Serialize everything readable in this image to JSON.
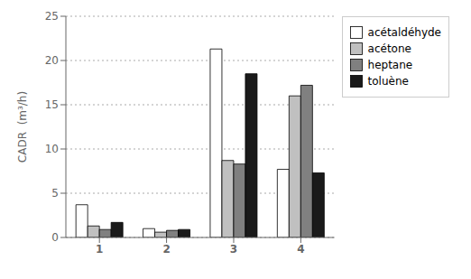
{
  "chart_data": {
    "type": "bar",
    "categories": [
      "1",
      "2",
      "3",
      "4"
    ],
    "series": [
      {
        "name": "acétaldéhyde",
        "color": "#ffffff",
        "values": [
          3.7,
          1.0,
          21.3,
          7.7
        ]
      },
      {
        "name": "acétone",
        "color": "#c0c0c0",
        "values": [
          1.3,
          0.6,
          8.7,
          16.0
        ]
      },
      {
        "name": "heptane",
        "color": "#808080",
        "values": [
          0.9,
          0.8,
          8.3,
          17.2
        ]
      },
      {
        "name": "toluène",
        "color": "#1a1a1a",
        "values": [
          1.7,
          0.9,
          18.5,
          7.3
        ]
      }
    ],
    "ylabel": "CADR  (m³/h)",
    "ylim": [
      0,
      25
    ],
    "yticks": [
      0,
      5,
      10,
      15,
      20,
      25
    ],
    "grid": true,
    "legend": "right"
  }
}
